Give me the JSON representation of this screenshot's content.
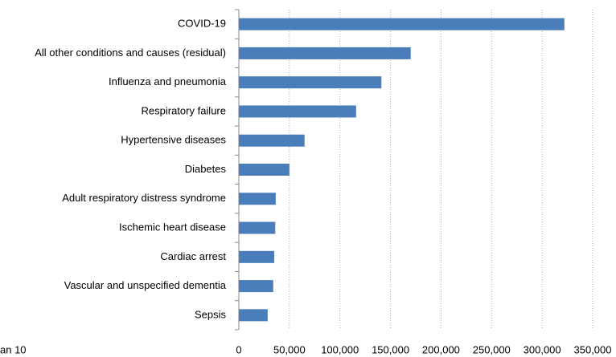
{
  "chart_data": {
    "type": "hbar",
    "categories": [
      "COVID-19",
      "All other conditions and causes (residual)",
      "Influenza and pneumonia",
      "Respiratory failure",
      "Hypertensive diseases",
      "Diabetes",
      "Adult respiratory distress syndrome",
      "Ischemic heart disease",
      "Cardiac arrest",
      "Vascular and unspecified dementia",
      "Sepsis"
    ],
    "values": [
      322000,
      170000,
      141000,
      116000,
      65000,
      50000,
      36500,
      36000,
      35000,
      34000,
      28500
    ],
    "color": "#4a7ebb",
    "xlim": [
      0,
      350000
    ],
    "xticks": [
      0,
      {
        "value": 50000,
        "label": "50,000"
      },
      {
        "value": 100000,
        "label": "100,000"
      },
      {
        "value": 150000,
        "label": "150,000"
      },
      {
        "value": 200000,
        "label": "200,000"
      },
      {
        "value": 250000,
        "label": "250,000"
      },
      {
        "value": 300000,
        "label": "300,000"
      },
      {
        "value": 350000,
        "label": "350,000"
      }
    ],
    "grid": true,
    "note": "an 10"
  }
}
